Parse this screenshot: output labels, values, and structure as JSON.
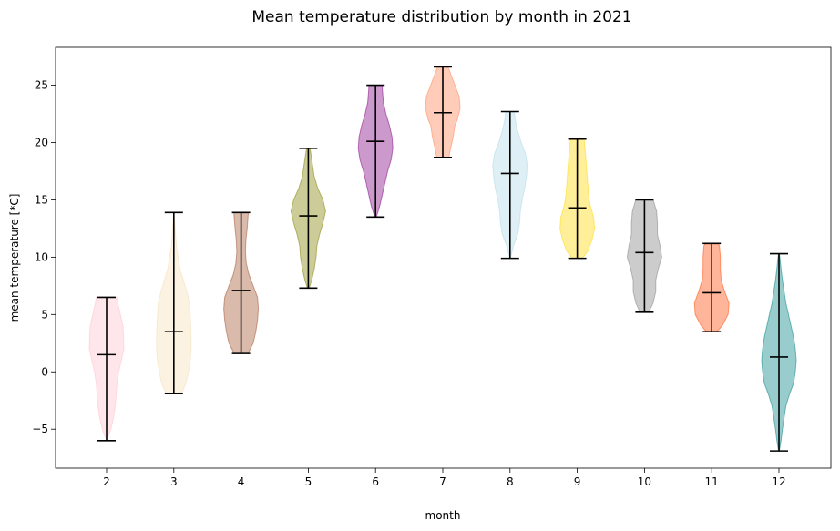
{
  "chart_data": {
    "type": "violin",
    "title": "Mean temperature distribution by month in 2021",
    "xlabel": "month",
    "ylabel": "mean temperature [*C]",
    "ylim": [
      -8.4,
      28.3
    ],
    "yticks": [
      -5,
      0,
      5,
      10,
      15,
      20,
      25
    ],
    "grid": false,
    "categories": [
      "2",
      "3",
      "4",
      "5",
      "6",
      "7",
      "8",
      "9",
      "10",
      "11",
      "12"
    ],
    "series": [
      {
        "month": "2",
        "min": -6.0,
        "median": 1.5,
        "max": 6.5,
        "color": "#FFC0CB",
        "profile": [
          [
            -6.0,
            0.0
          ],
          [
            -5.0,
            0.25
          ],
          [
            -4.0,
            0.4
          ],
          [
            -3.0,
            0.5
          ],
          [
            -2.0,
            0.55
          ],
          [
            -1.0,
            0.6
          ],
          [
            0.0,
            0.7
          ],
          [
            1.0,
            0.85
          ],
          [
            2.0,
            1.0
          ],
          [
            3.0,
            0.98
          ],
          [
            4.0,
            0.95
          ],
          [
            5.0,
            0.8
          ],
          [
            6.0,
            0.65
          ],
          [
            6.5,
            0.6
          ]
        ]
      },
      {
        "month": "3",
        "min": -1.9,
        "median": 3.5,
        "max": 13.9,
        "color": "#F5DEB3",
        "profile": [
          [
            -1.9,
            0.45
          ],
          [
            -1.0,
            0.7
          ],
          [
            0.0,
            0.85
          ],
          [
            1.0,
            0.95
          ],
          [
            2.0,
            1.0
          ],
          [
            3.0,
            1.0
          ],
          [
            4.0,
            0.98
          ],
          [
            5.0,
            0.95
          ],
          [
            6.0,
            0.9
          ],
          [
            7.0,
            0.75
          ],
          [
            8.0,
            0.55
          ],
          [
            9.0,
            0.35
          ],
          [
            10.0,
            0.25
          ],
          [
            11.0,
            0.15
          ],
          [
            12.0,
            0.1
          ],
          [
            13.0,
            0.05
          ],
          [
            13.9,
            0.0
          ]
        ]
      },
      {
        "month": "4",
        "min": 1.6,
        "median": 7.1,
        "max": 13.9,
        "color": "#A0522D",
        "profile": [
          [
            1.6,
            0.4
          ],
          [
            2.5,
            0.7
          ],
          [
            3.5,
            0.85
          ],
          [
            4.5,
            0.95
          ],
          [
            5.5,
            1.0
          ],
          [
            6.5,
            0.95
          ],
          [
            7.5,
            0.7
          ],
          [
            8.5,
            0.45
          ],
          [
            9.5,
            0.3
          ],
          [
            10.5,
            0.25
          ],
          [
            11.5,
            0.28
          ],
          [
            12.5,
            0.35
          ],
          [
            13.5,
            0.4
          ],
          [
            13.9,
            0.42
          ]
        ]
      },
      {
        "month": "5",
        "min": 7.3,
        "median": 13.6,
        "max": 19.5,
        "color": "#808000",
        "profile": [
          [
            7.3,
            0.05
          ],
          [
            8.0,
            0.2
          ],
          [
            9.0,
            0.35
          ],
          [
            10.0,
            0.45
          ],
          [
            11.0,
            0.5
          ],
          [
            12.0,
            0.65
          ],
          [
            13.0,
            0.85
          ],
          [
            14.0,
            1.0
          ],
          [
            15.0,
            0.85
          ],
          [
            16.0,
            0.55
          ],
          [
            17.0,
            0.35
          ],
          [
            18.0,
            0.25
          ],
          [
            19.0,
            0.15
          ],
          [
            19.5,
            0.1
          ]
        ]
      },
      {
        "month": "6",
        "min": 13.5,
        "median": 20.1,
        "max": 25.0,
        "color": "#800080",
        "profile": [
          [
            13.5,
            0.05
          ],
          [
            14.5,
            0.25
          ],
          [
            15.5,
            0.4
          ],
          [
            16.5,
            0.55
          ],
          [
            17.5,
            0.7
          ],
          [
            18.5,
            0.9
          ],
          [
            19.5,
            1.0
          ],
          [
            20.5,
            0.95
          ],
          [
            21.5,
            0.8
          ],
          [
            22.5,
            0.6
          ],
          [
            23.5,
            0.45
          ],
          [
            24.5,
            0.4
          ],
          [
            25.0,
            0.38
          ]
        ]
      },
      {
        "month": "7",
        "min": 18.7,
        "median": 22.6,
        "max": 26.6,
        "color": "#FF7F50",
        "profile": [
          [
            18.7,
            0.35
          ],
          [
            19.5,
            0.45
          ],
          [
            20.5,
            0.6
          ],
          [
            21.5,
            0.7
          ],
          [
            22.0,
            0.85
          ],
          [
            23.0,
            1.0
          ],
          [
            24.0,
            0.95
          ],
          [
            25.0,
            0.7
          ],
          [
            26.0,
            0.45
          ],
          [
            26.6,
            0.3
          ]
        ]
      },
      {
        "month": "8",
        "min": 9.9,
        "median": 17.3,
        "max": 22.7,
        "color": "#ADD8E6",
        "profile": [
          [
            9.9,
            0.02
          ],
          [
            11.0,
            0.2
          ],
          [
            12.0,
            0.45
          ],
          [
            13.0,
            0.55
          ],
          [
            14.0,
            0.6
          ],
          [
            15.0,
            0.7
          ],
          [
            16.0,
            0.85
          ],
          [
            17.0,
            0.95
          ],
          [
            18.0,
            1.0
          ],
          [
            19.0,
            0.9
          ],
          [
            20.0,
            0.65
          ],
          [
            21.0,
            0.45
          ],
          [
            22.0,
            0.3
          ],
          [
            22.7,
            0.25
          ]
        ]
      },
      {
        "month": "9",
        "min": 9.9,
        "median": 14.3,
        "max": 20.3,
        "color": "#FFD700",
        "profile": [
          [
            9.9,
            0.3
          ],
          [
            10.5,
            0.6
          ],
          [
            11.5,
            0.85
          ],
          [
            12.5,
            1.0
          ],
          [
            13.5,
            0.95
          ],
          [
            14.5,
            0.75
          ],
          [
            15.5,
            0.65
          ],
          [
            16.5,
            0.6
          ],
          [
            17.5,
            0.55
          ],
          [
            18.5,
            0.5
          ],
          [
            19.5,
            0.45
          ],
          [
            20.3,
            0.4
          ]
        ]
      },
      {
        "month": "10",
        "min": 5.2,
        "median": 10.4,
        "max": 15.0,
        "color": "#808080",
        "profile": [
          [
            5.2,
            0.25
          ],
          [
            6.0,
            0.5
          ],
          [
            7.0,
            0.65
          ],
          [
            8.0,
            0.65
          ],
          [
            9.0,
            0.8
          ],
          [
            10.0,
            1.0
          ],
          [
            11.0,
            0.9
          ],
          [
            12.0,
            0.75
          ],
          [
            13.0,
            0.75
          ],
          [
            14.0,
            0.7
          ],
          [
            15.0,
            0.5
          ]
        ]
      },
      {
        "month": "11",
        "min": 3.5,
        "median": 6.9,
        "max": 11.2,
        "color": "#FF4500",
        "profile": [
          [
            3.5,
            0.3
          ],
          [
            4.0,
            0.6
          ],
          [
            5.0,
            0.95
          ],
          [
            6.0,
            1.0
          ],
          [
            7.0,
            0.75
          ],
          [
            8.0,
            0.55
          ],
          [
            9.0,
            0.5
          ],
          [
            10.0,
            0.5
          ],
          [
            11.0,
            0.45
          ],
          [
            11.2,
            0.35
          ]
        ]
      },
      {
        "month": "12",
        "min": -6.9,
        "median": 1.3,
        "max": 10.3,
        "color": "#008080",
        "profile": [
          [
            -6.9,
            0.02
          ],
          [
            -6.0,
            0.12
          ],
          [
            -5.0,
            0.2
          ],
          [
            -4.0,
            0.3
          ],
          [
            -3.0,
            0.4
          ],
          [
            -2.0,
            0.6
          ],
          [
            -1.0,
            0.85
          ],
          [
            0.0,
            0.95
          ],
          [
            1.0,
            1.0
          ],
          [
            2.0,
            0.95
          ],
          [
            3.0,
            0.85
          ],
          [
            4.0,
            0.7
          ],
          [
            5.0,
            0.55
          ],
          [
            6.0,
            0.4
          ],
          [
            7.0,
            0.3
          ],
          [
            8.0,
            0.2
          ],
          [
            9.0,
            0.12
          ],
          [
            10.0,
            0.05
          ],
          [
            10.3,
            0.02
          ]
        ]
      }
    ]
  }
}
